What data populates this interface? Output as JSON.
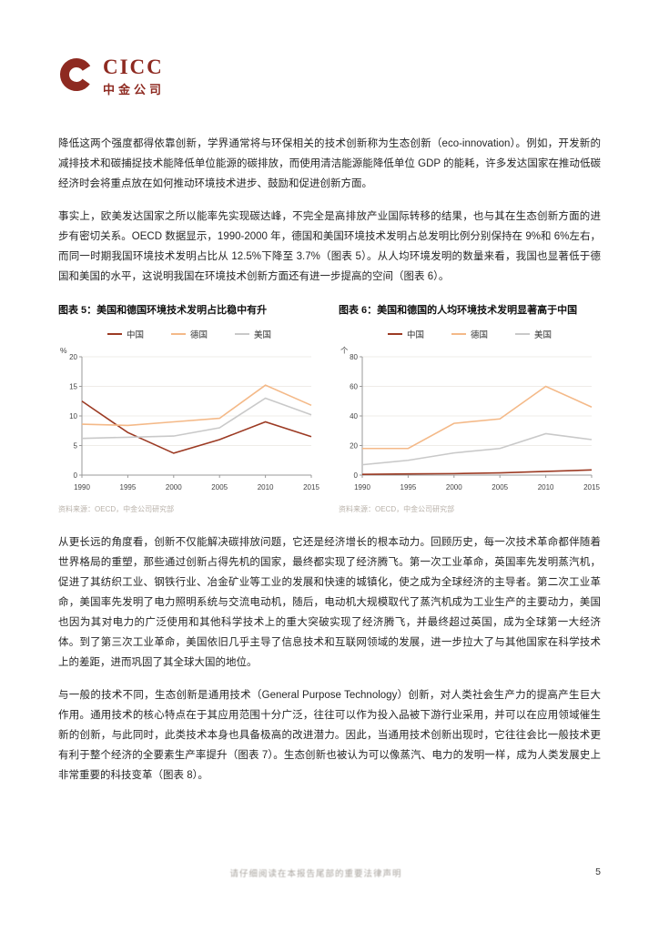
{
  "logo": {
    "en": "CICC",
    "cn": "中金公司",
    "brand_color": "#8e2a21"
  },
  "paragraphs": [
    "降低这两个强度都得依靠创新，学界通常将与环保相关的技术创新称为生态创新（eco-innovation）。例如，开发新的减排技术和碳捕捉技术能降低单位能源的碳排放，而使用清洁能源能降低单位 GDP 的能耗，许多发达国家在推动低碳经济时会将重点放在如何推动环境技术进步、鼓励和促进创新方面。",
    "事实上，欧美发达国家之所以能率先实现碳达峰，不完全是高排放产业国际转移的结果，也与其在生态创新方面的进步有密切关系。OECD 数据显示，1990-2000 年，德国和美国环境技术发明占总发明比例分别保持在 9%和 6%左右，而同一时期我国环境技术发明占比从 12.5%下降至 3.7%（图表 5）。从人均环境发明的数量来看，我国也显著低于德国和美国的水平，这说明我国在环境技术创新方面还有进一步提高的空间（图表 6）。",
    "从更长远的角度看，创新不仅能解决碳排放问题，它还是经济增长的根本动力。回顾历史，每一次技术革命都伴随着世界格局的重塑，那些通过创新占得先机的国家，最终都实现了经济腾飞。第一次工业革命，英国率先发明蒸汽机，促进了其纺织工业、钢铁行业、冶金矿业等工业的发展和快速的城镇化，使之成为全球经济的主导者。第二次工业革命，美国率先发明了电力照明系统与交流电动机，随后，电动机大规模取代了蒸汽机成为工业生产的主要动力，美国也因为其对电力的广泛使用和其他科学技术上的重大突破实现了经济腾飞，并最终超过英国，成为全球第一大经济体。到了第三次工业革命，美国依旧几乎主导了信息技术和互联网领域的发展，进一步拉大了与其他国家在科学技术上的差距，进而巩固了其全球大国的地位。",
    "与一般的技术不同，生态创新是通用技术（General Purpose Technology）创新，对人类社会生产力的提高产生巨大作用。通用技术的核心特点在于其应用范围十分广泛，往往可以作为投入品被下游行业采用，并可以在应用领域催生新的创新，与此同时，此类技术本身也具备极高的改进潜力。因此，当通用技术创新出现时，它往往会比一般技术更有利于整个经济的全要素生产率提升（图表 7）。生态创新也被认为可以像蒸汽、电力的发明一样，成为人类发展史上非常重要的科技变革（图表 8）。"
  ],
  "figures": [
    {
      "title": "图表 5：美国和德国环境技术发明占比稳中有升",
      "source": "资料来源：OECD，中金公司研究部"
    },
    {
      "title": "图表 6：美国和德国的人均环境技术发明显著高于中国",
      "source": "资料来源：OECD，中金公司研究部"
    }
  ],
  "chart_data": [
    {
      "type": "line",
      "title": "美国和德国环境技术发明占比稳中有升",
      "y_unit": "%",
      "x": [
        1990,
        1995,
        2000,
        2005,
        2010,
        2015
      ],
      "ylim": [
        0,
        20
      ],
      "yticks": [
        0,
        5,
        10,
        15,
        20
      ],
      "grid": true,
      "legend_position": "top",
      "series": [
        {
          "name": "中国",
          "color": "#9c3a23",
          "values": [
            12.5,
            7.2,
            3.7,
            6.0,
            9.0,
            6.5
          ]
        },
        {
          "name": "德国",
          "color": "#f4b988",
          "values": [
            8.6,
            8.4,
            9.0,
            9.6,
            15.2,
            11.8
          ]
        },
        {
          "name": "美国",
          "color": "#c9c9c9",
          "values": [
            6.2,
            6.4,
            6.6,
            8.0,
            13.0,
            10.2
          ]
        }
      ]
    },
    {
      "type": "line",
      "title": "美国和德国的人均环境技术发明显著高于中国",
      "y_unit": "个",
      "x": [
        1990,
        1995,
        2000,
        2005,
        2010,
        2015
      ],
      "ylim": [
        0,
        80
      ],
      "yticks": [
        0,
        20,
        40,
        60,
        80
      ],
      "grid": true,
      "legend_position": "top",
      "series": [
        {
          "name": "中国",
          "color": "#9c3a23",
          "values": [
            0.5,
            0.8,
            1.0,
            1.5,
            2.5,
            3.5
          ]
        },
        {
          "name": "德国",
          "color": "#f4b988",
          "values": [
            18,
            18,
            35,
            38,
            60,
            46
          ]
        },
        {
          "name": "美国",
          "color": "#c9c9c9",
          "values": [
            7,
            10,
            15,
            18,
            28,
            24
          ]
        }
      ]
    }
  ],
  "footer": {
    "disclaimer": "请仔细阅读在本报告尾部的重要法律声明",
    "page_number": "5"
  }
}
